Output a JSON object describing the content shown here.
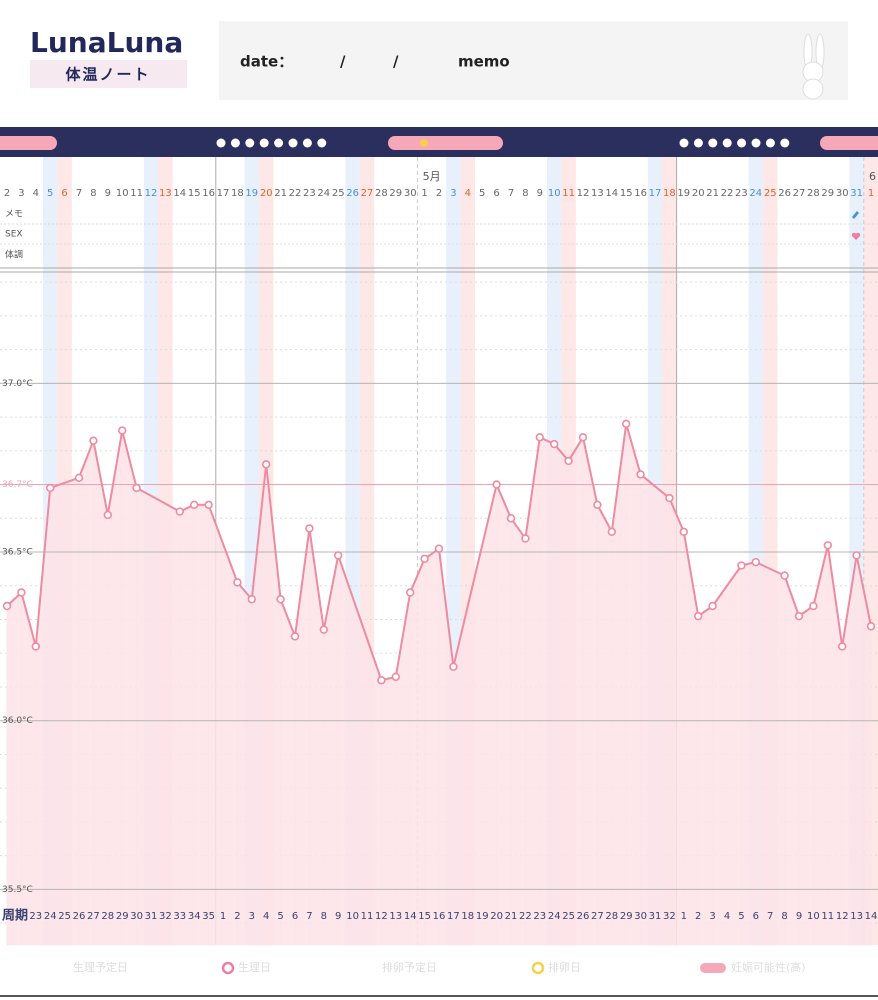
{
  "header": {
    "logo": "LunaLuna",
    "subtitle": "体温ノート",
    "date_label": "date：",
    "separator_1": "/",
    "separator_2": "/",
    "memo_label": "memo"
  },
  "row_labels": [
    "メモ",
    "SEX",
    "体調"
  ],
  "legend": [
    "生理予定日",
    "生理日",
    "排卵予定日",
    "排卵日",
    "妊娠可能性(高)"
  ],
  "chart_data": {
    "type": "line",
    "categories": [
      "2",
      "3",
      "4",
      "5",
      "6",
      "7",
      "8",
      "9",
      "10",
      "11",
      "12",
      "13",
      "14",
      "15",
      "16",
      "17",
      "18",
      "19",
      "20",
      "21",
      "22",
      "23",
      "24",
      "25",
      "26",
      "27",
      "28",
      "29",
      "30",
      "1",
      "2",
      "3",
      "4",
      "5",
      "6",
      "7",
      "8",
      "9",
      "10",
      "11",
      "12",
      "13",
      "14",
      "15",
      "16",
      "17",
      "18",
      "19",
      "20",
      "21",
      "22",
      "23",
      "24",
      "25",
      "26",
      "27",
      "28",
      "29",
      "30",
      "31",
      "1"
    ],
    "month_labels": [
      null,
      null,
      null,
      null,
      null,
      null,
      null,
      null,
      null,
      null,
      null,
      null,
      null,
      null,
      null,
      null,
      null,
      null,
      null,
      null,
      null,
      null,
      null,
      null,
      null,
      null,
      null,
      null,
      null,
      "5月",
      null,
      null,
      null,
      null,
      null,
      null,
      null,
      null,
      null,
      null,
      null,
      null,
      null,
      null,
      null,
      null,
      null,
      null,
      null,
      null,
      null,
      null,
      null,
      null,
      null,
      null,
      null,
      null,
      null,
      null,
      "6"
    ],
    "values": [
      36.34,
      36.38,
      36.22,
      36.69,
      null,
      36.72,
      36.83,
      36.61,
      36.86,
      36.69,
      null,
      null,
      36.62,
      36.64,
      36.64,
      null,
      36.41,
      36.36,
      36.76,
      36.36,
      36.25,
      36.57,
      36.27,
      36.49,
      null,
      null,
      36.12,
      36.13,
      36.38,
      36.48,
      36.51,
      36.16,
      null,
      null,
      36.7,
      36.6,
      36.54,
      36.84,
      36.82,
      36.77,
      36.84,
      36.64,
      36.56,
      36.88,
      36.73,
      null,
      36.66,
      36.56,
      36.31,
      36.34,
      null,
      36.46,
      36.47,
      null,
      36.43,
      36.31,
      36.34,
      36.52,
      36.22,
      36.49,
      36.28
    ],
    "cycle_label": "周期",
    "cycle_days": [
      null,
      null,
      23,
      24,
      25,
      26,
      27,
      28,
      29,
      30,
      31,
      32,
      33,
      34,
      35,
      1,
      2,
      3,
      4,
      5,
      6,
      7,
      8,
      9,
      10,
      11,
      12,
      13,
      14,
      15,
      16,
      17,
      18,
      19,
      20,
      21,
      22,
      23,
      24,
      25,
      26,
      27,
      28,
      29,
      30,
      31,
      32,
      1,
      2,
      3,
      4,
      5,
      6,
      7,
      8,
      9,
      10,
      11,
      12,
      13,
      14
    ],
    "ylim": [
      35.35,
      37.33
    ],
    "yticks": [
      {
        "value": 35.5,
        "label": "35.5°C"
      },
      {
        "value": 36.0,
        "label": "36.0°C"
      },
      {
        "value": 36.5,
        "label": "36.5°C"
      },
      {
        "value": 37.0,
        "label": "37.0°C"
      }
    ],
    "minor_yticks": [
      35.4,
      35.6,
      35.7,
      35.8,
      35.9,
      36.1,
      36.2,
      36.3,
      36.4,
      36.6,
      36.8,
      36.9,
      37.1,
      37.2,
      37.3
    ],
    "reference_line": {
      "value": 36.7,
      "label": "36.7°C",
      "color": "#f0a3b2"
    },
    "color": "#ee8ba0",
    "saturday_color": "#4a90d9",
    "sunday_color": "#e0652b"
  }
}
